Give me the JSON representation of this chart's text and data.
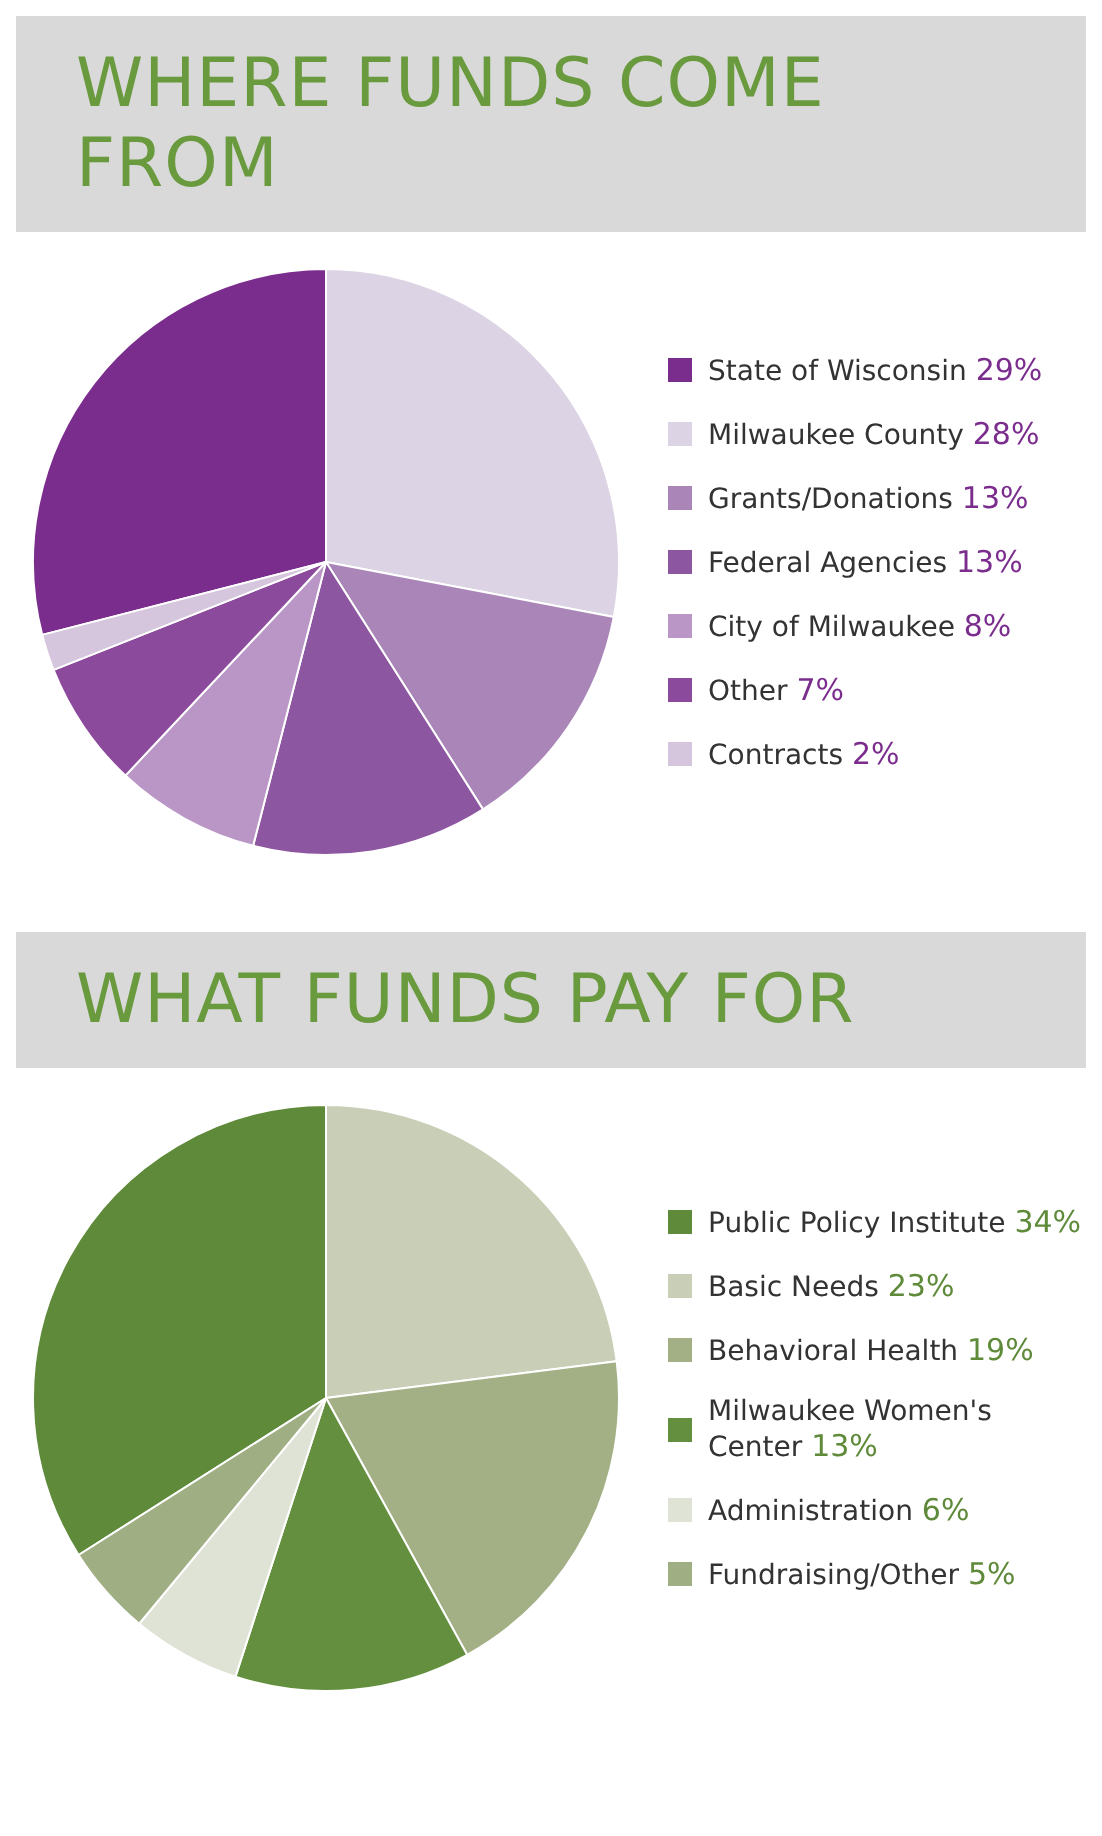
{
  "chart_data": [
    {
      "type": "pie",
      "title": "WHERE FUNDS COME FROM",
      "categories": [
        "State of Wisconsin",
        "Milwaukee County",
        "Grants/Donations",
        "Federal Agencies",
        "City of Milwaukee",
        "Other",
        "Contracts"
      ],
      "values": [
        29,
        28,
        13,
        13,
        8,
        7,
        2
      ],
      "value_labels": [
        "29%",
        "28%",
        "13%",
        "13%",
        "8%",
        "7%",
        "2%"
      ],
      "colors": [
        "#7b2d8e",
        "#dcd3e4",
        "#a985b8",
        "#8d56a0",
        "#b996c6",
        "#8c4a9d",
        "#d5c5dd"
      ],
      "legend": "right"
    },
    {
      "type": "pie",
      "title": "WHAT FUNDS PAY FOR",
      "categories": [
        "Public Policy Institute",
        "Basic Needs",
        "Behavioral Health",
        "Milwaukee Women's Center",
        "Administration",
        "Fundraising/Other"
      ],
      "values": [
        34,
        23,
        19,
        13,
        6,
        5
      ],
      "value_labels": [
        "34%",
        "23%",
        "19%",
        "13%",
        "6%",
        "5%"
      ],
      "colors": [
        "#5e8a3a",
        "#c8cfb6",
        "#a3b086",
        "#648f3e",
        "#dfe3d6",
        "#a0ae84"
      ],
      "legend": "right"
    }
  ]
}
